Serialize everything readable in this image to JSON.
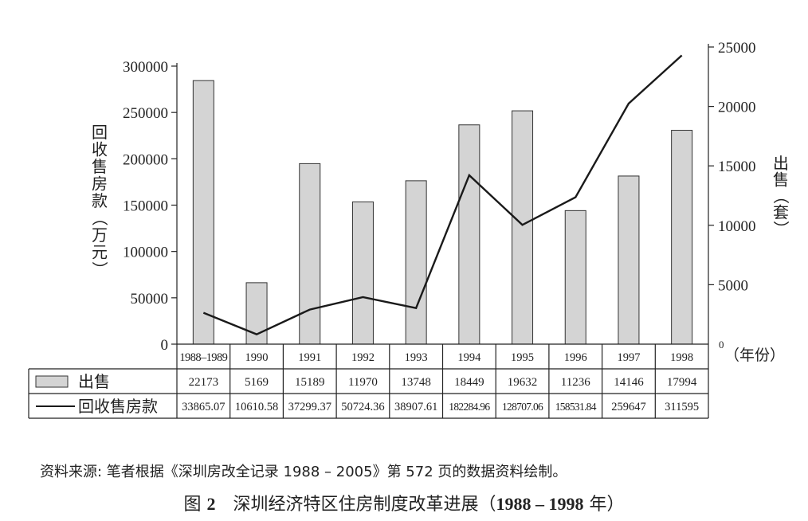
{
  "chart_data": {
    "type": "bar+line",
    "categories": [
      "1988–1989",
      "1990",
      "1991",
      "1992",
      "1993",
      "1994",
      "1995",
      "1996",
      "1997",
      "1998"
    ],
    "series": [
      {
        "name": "出售",
        "type": "bar",
        "axis": "right",
        "values": [
          22173,
          5169,
          15189,
          11970,
          13748,
          18449,
          19632,
          11236,
          14146,
          17994
        ]
      },
      {
        "name": "回收售房款",
        "type": "line",
        "axis": "left",
        "values": [
          33865.07,
          10610.58,
          37299.37,
          50724.36,
          38907.61,
          182284.96,
          128707.06,
          158531.84,
          259647,
          311595
        ]
      }
    ],
    "table_values": {
      "bars": [
        "22173",
        "5169",
        "15189",
        "11970",
        "13748",
        "18449",
        "19632",
        "11236",
        "14146",
        "17994"
      ],
      "line": [
        "33865.07",
        "10610.58",
        "37299.37",
        "50724.36",
        "38907.61",
        "182284.96",
        "128707.06",
        "158531.84",
        "259647",
        "311595"
      ]
    },
    "left_axis": {
      "label": "回收售房款（万元）",
      "ticks": [
        "0",
        "50000",
        "100000",
        "150000",
        "200000",
        "250000",
        "300000"
      ],
      "range": [
        0,
        300000
      ]
    },
    "right_axis": {
      "label": "出售（套）",
      "ticks": [
        "0",
        "5000",
        "10000",
        "15000",
        "20000",
        "25000"
      ],
      "range": [
        0,
        25000
      ]
    },
    "x_unit_label": "（年份）",
    "colors": {
      "bar_fill": "#d4d4d4",
      "bar_stroke": "#333333",
      "line": "#1a1a1a"
    }
  },
  "source_note": "资料来源: 笔者根据《深圳房改全记录 1988 – 2005》第 572 页的数据资料绘制。",
  "caption": {
    "prefix": "图",
    "number": "2",
    "title": "深圳经济特区住房制度改革进展（",
    "years": "1988 – 1998",
    "suffix": " 年）"
  }
}
